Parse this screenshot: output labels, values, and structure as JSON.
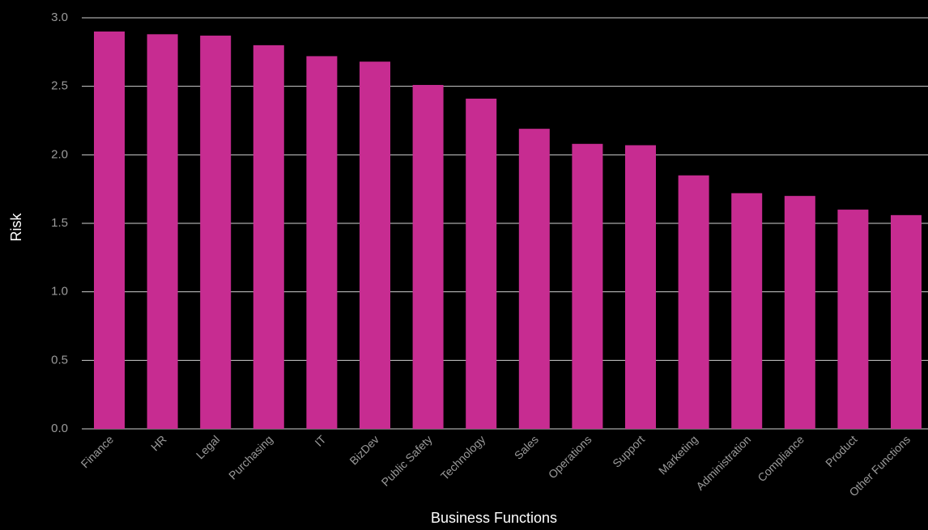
{
  "chart_data": {
    "type": "bar",
    "title": "",
    "xlabel": "Business Functions",
    "ylabel": "Risk",
    "ylim": [
      0,
      3.0
    ],
    "yticks": [
      "0.0",
      "0.5",
      "1.0",
      "1.5",
      "2.0",
      "2.5",
      "3.0"
    ],
    "grid": true,
    "legend": "none",
    "bar_color": "#c72c91",
    "background": "#000000",
    "categories": [
      "Finance",
      "HR",
      "Legal",
      "Purchasing",
      "IT",
      "BizDev",
      "Public Safety",
      "Technology",
      "Sales",
      "Operations",
      "Support",
      "Marketing",
      "Administration",
      "Compliance",
      "Product",
      "Other Functions"
    ],
    "values": [
      2.9,
      2.88,
      2.87,
      2.8,
      2.72,
      2.68,
      2.51,
      2.41,
      2.19,
      2.08,
      2.07,
      1.85,
      1.72,
      1.7,
      1.6,
      1.56
    ]
  }
}
